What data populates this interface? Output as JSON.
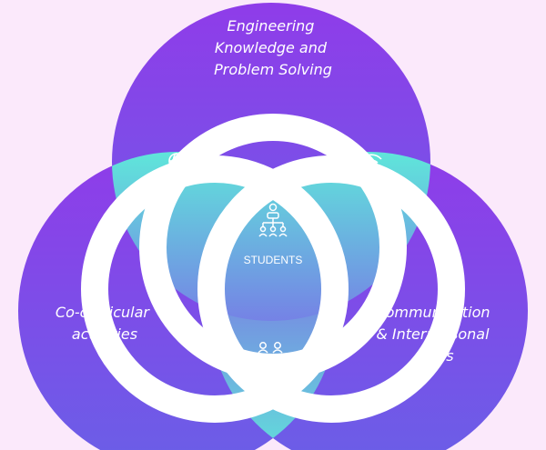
{
  "diagram": {
    "center_label": "STUDENTS",
    "circles": [
      {
        "id": "top",
        "lines": [
          "Engineering",
          "Knowledge and",
          "Problem Solving"
        ]
      },
      {
        "id": "left",
        "lines": [
          "Co-curricular",
          "activities"
        ]
      },
      {
        "id": "right",
        "lines": [
          "Communication",
          "& Interpersonal",
          "Skills"
        ]
      }
    ],
    "icons": {
      "top_left_overlap": "global-team-icon",
      "top_right_overlap": "broadcast-team-icon",
      "center": "student-hierarchy-icon",
      "bottom_overlap": "peer-network-icon"
    }
  },
  "colors": {
    "background": "#fbe9fb",
    "circle_top": "#8e3be8",
    "circle_bottom": "#6d5ce6",
    "overlap_top": "#5fe3da",
    "overlap_bottom": "#8a3ee9",
    "ring": "#ffffff"
  }
}
